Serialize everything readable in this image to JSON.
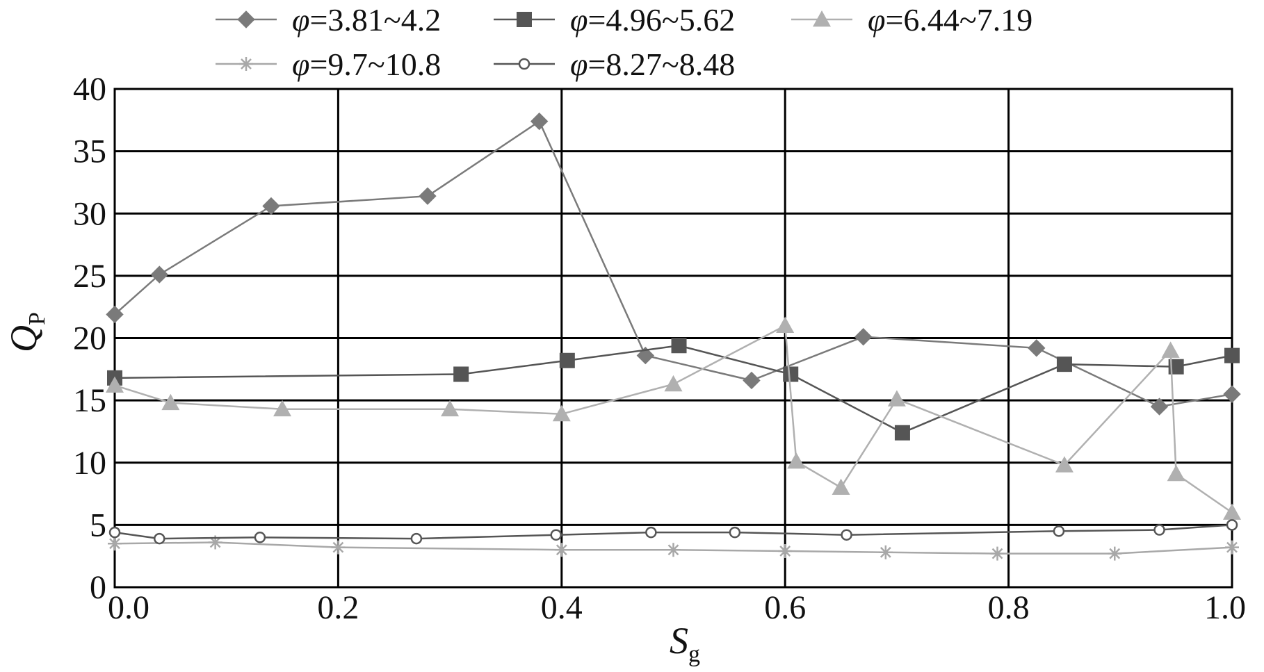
{
  "chart_data": {
    "type": "line",
    "xlabel": "S",
    "xlabel_sub": "g",
    "ylabel": "Q",
    "ylabel_sub": "P",
    "xlim": [
      0,
      1.0
    ],
    "ylim": [
      0,
      40
    ],
    "x_ticks": [
      "0.0",
      "0.2",
      "0.4",
      "0.6",
      "0.8",
      "1.0"
    ],
    "y_ticks": [
      "0",
      "5",
      "10",
      "15",
      "20",
      "25",
      "30",
      "35",
      "40"
    ],
    "grid": true,
    "legend_position": "top",
    "series": [
      {
        "name": "φ=3.81~4.2",
        "name_prefix": "φ",
        "name_rest": "=3.81~4.2",
        "marker": "diamond",
        "color": "#7a7a7a",
        "points": [
          [
            0.0,
            21.9
          ],
          [
            0.04,
            25.1
          ],
          [
            0.14,
            30.6
          ],
          [
            0.28,
            31.4
          ],
          [
            0.38,
            37.4
          ],
          [
            0.475,
            18.6
          ],
          [
            0.57,
            16.6
          ],
          [
            0.67,
            20.1
          ],
          [
            0.825,
            19.2
          ],
          [
            0.935,
            14.5
          ],
          [
            1.0,
            15.5
          ]
        ]
      },
      {
        "name": "φ=4.96~5.62",
        "name_prefix": "φ",
        "name_rest": "=4.96~5.62",
        "marker": "square",
        "color": "#555555",
        "points": [
          [
            0.0,
            16.8
          ],
          [
            0.31,
            17.1
          ],
          [
            0.405,
            18.2
          ],
          [
            0.505,
            19.4
          ],
          [
            0.605,
            17.1
          ],
          [
            0.705,
            12.4
          ],
          [
            0.85,
            17.9
          ],
          [
            0.95,
            17.7
          ],
          [
            1.0,
            18.6
          ]
        ]
      },
      {
        "name": "φ=6.44~7.19",
        "name_prefix": "φ",
        "name_rest": "=6.44~7.19",
        "marker": "triangle",
        "color": "#b0b0b0",
        "points": [
          [
            0.0,
            16.2
          ],
          [
            0.05,
            14.8
          ],
          [
            0.15,
            14.3
          ],
          [
            0.3,
            14.3
          ],
          [
            0.4,
            13.9
          ],
          [
            0.5,
            16.3
          ],
          [
            0.6,
            21.0
          ],
          [
            0.61,
            10.1
          ],
          [
            0.65,
            8.0
          ],
          [
            0.7,
            15.1
          ],
          [
            0.85,
            9.8
          ],
          [
            0.945,
            19.0
          ],
          [
            0.95,
            9.1
          ],
          [
            1.0,
            6.0
          ]
        ]
      },
      {
        "name": "φ=9.7~10.8",
        "name_prefix": "φ",
        "name_rest": "=9.7~10.8",
        "marker": "asterisk",
        "color": "#a8a8a8",
        "points": [
          [
            0.0,
            3.5
          ],
          [
            0.09,
            3.6
          ],
          [
            0.2,
            3.2
          ],
          [
            0.4,
            3.0
          ],
          [
            0.5,
            3.0
          ],
          [
            0.6,
            2.9
          ],
          [
            0.69,
            2.8
          ],
          [
            0.79,
            2.7
          ],
          [
            0.895,
            2.7
          ],
          [
            1.0,
            3.2
          ]
        ]
      },
      {
        "name": "φ=8.27~8.48",
        "name_prefix": "φ",
        "name_rest": "=8.27~8.48",
        "marker": "circle",
        "color": "#555555",
        "points": [
          [
            0.0,
            4.4
          ],
          [
            0.04,
            3.9
          ],
          [
            0.13,
            4.0
          ],
          [
            0.27,
            3.9
          ],
          [
            0.395,
            4.2
          ],
          [
            0.48,
            4.4
          ],
          [
            0.555,
            4.4
          ],
          [
            0.655,
            4.2
          ],
          [
            0.845,
            4.5
          ],
          [
            0.935,
            4.6
          ],
          [
            1.0,
            5.0
          ]
        ]
      }
    ]
  }
}
